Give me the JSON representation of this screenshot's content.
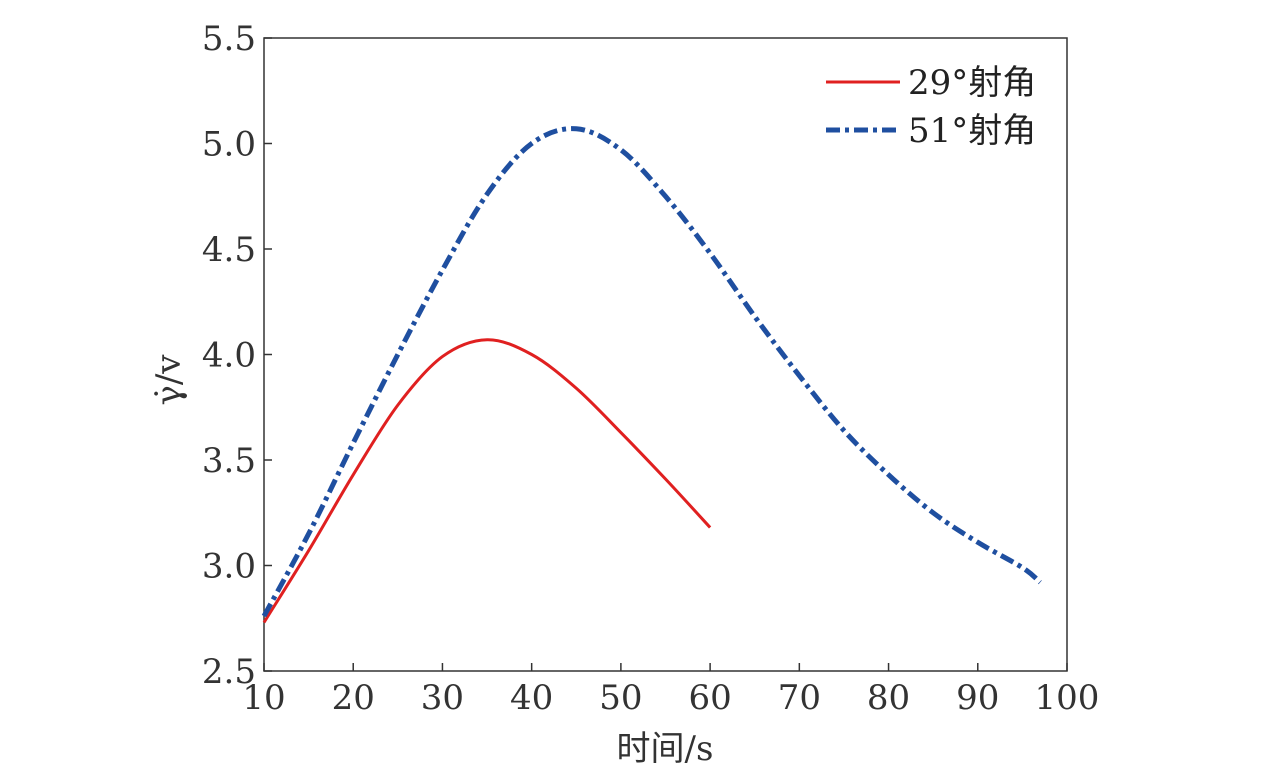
{
  "chart_data": {
    "type": "line",
    "xlabel": "时间/s",
    "ylabel": "γ̇/v",
    "xlim": [
      10,
      100
    ],
    "ylim": [
      2.5,
      5.5
    ],
    "x_ticks": [
      "10",
      "20",
      "30",
      "40",
      "50",
      "60",
      "70",
      "80",
      "90",
      "100"
    ],
    "y_ticks": [
      "2.5",
      "3.0",
      "3.5",
      "4.0",
      "4.5",
      "5.0",
      "5.5"
    ],
    "grid": false,
    "legend_position": "top-right",
    "series": [
      {
        "name": "29°射角",
        "color": "#e02020",
        "style": "solid",
        "x": [
          10,
          15,
          20,
          25,
          30,
          35,
          40,
          45,
          50,
          55,
          60
        ],
        "y": [
          2.73,
          3.07,
          3.43,
          3.76,
          3.99,
          4.07,
          4.0,
          3.84,
          3.63,
          3.41,
          3.18
        ]
      },
      {
        "name": "51°射角",
        "color": "#1f4fa0",
        "style": "dashdot",
        "x": [
          10,
          15,
          20,
          25,
          30,
          35,
          40,
          45,
          50,
          55,
          60,
          65,
          70,
          75,
          80,
          85,
          90,
          95,
          97
        ],
        "y": [
          2.76,
          3.15,
          3.58,
          4.0,
          4.4,
          4.76,
          5.0,
          5.07,
          4.97,
          4.75,
          4.48,
          4.18,
          3.9,
          3.64,
          3.43,
          3.25,
          3.11,
          2.99,
          2.92
        ]
      }
    ]
  }
}
